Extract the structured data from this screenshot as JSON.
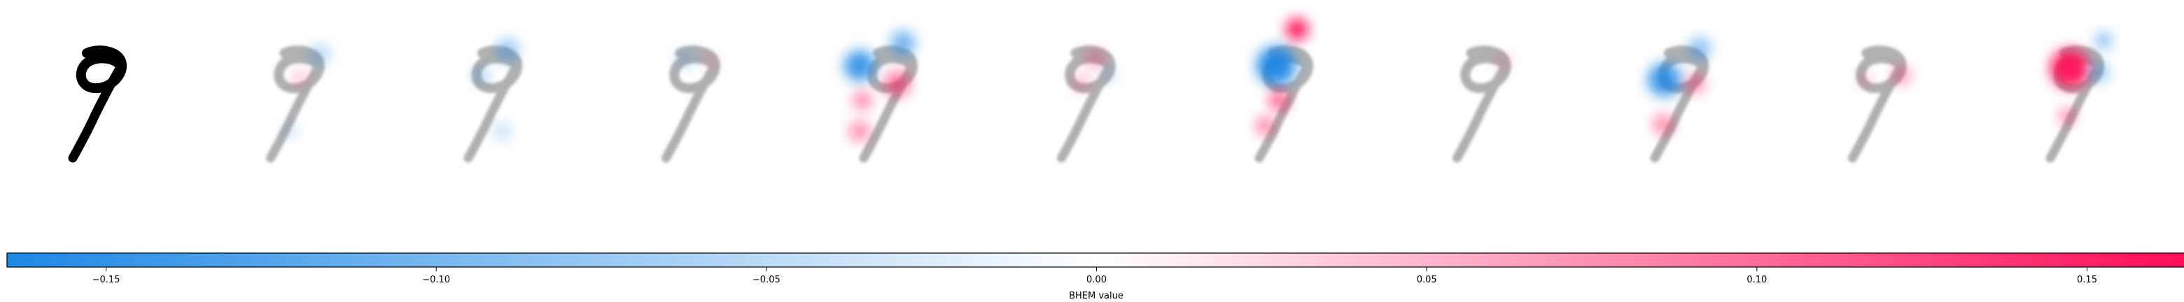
{
  "chart_data": {
    "type": "heatmap",
    "panel_count": 11,
    "panels": [
      {
        "kind": "original"
      },
      {
        "kind": "explanation"
      },
      {
        "kind": "explanation"
      },
      {
        "kind": "explanation"
      },
      {
        "kind": "explanation"
      },
      {
        "kind": "explanation"
      },
      {
        "kind": "explanation"
      },
      {
        "kind": "explanation"
      },
      {
        "kind": "explanation"
      },
      {
        "kind": "explanation"
      },
      {
        "kind": "explanation"
      }
    ],
    "colorbar": {
      "label": "BHEM value",
      "vmin": -0.165,
      "vmax": 0.165,
      "ticks": [
        -0.15,
        -0.1,
        -0.05,
        0.0,
        0.05,
        0.1,
        0.15
      ],
      "tick_labels": [
        "−0.15",
        "−0.10",
        "−0.05",
        "0.00",
        "0.05",
        "0.10",
        "0.15"
      ],
      "colormap": {
        "negative": "#1E88E5",
        "neutral": "#FFFFFF",
        "positive": "#FF0D57"
      }
    }
  }
}
